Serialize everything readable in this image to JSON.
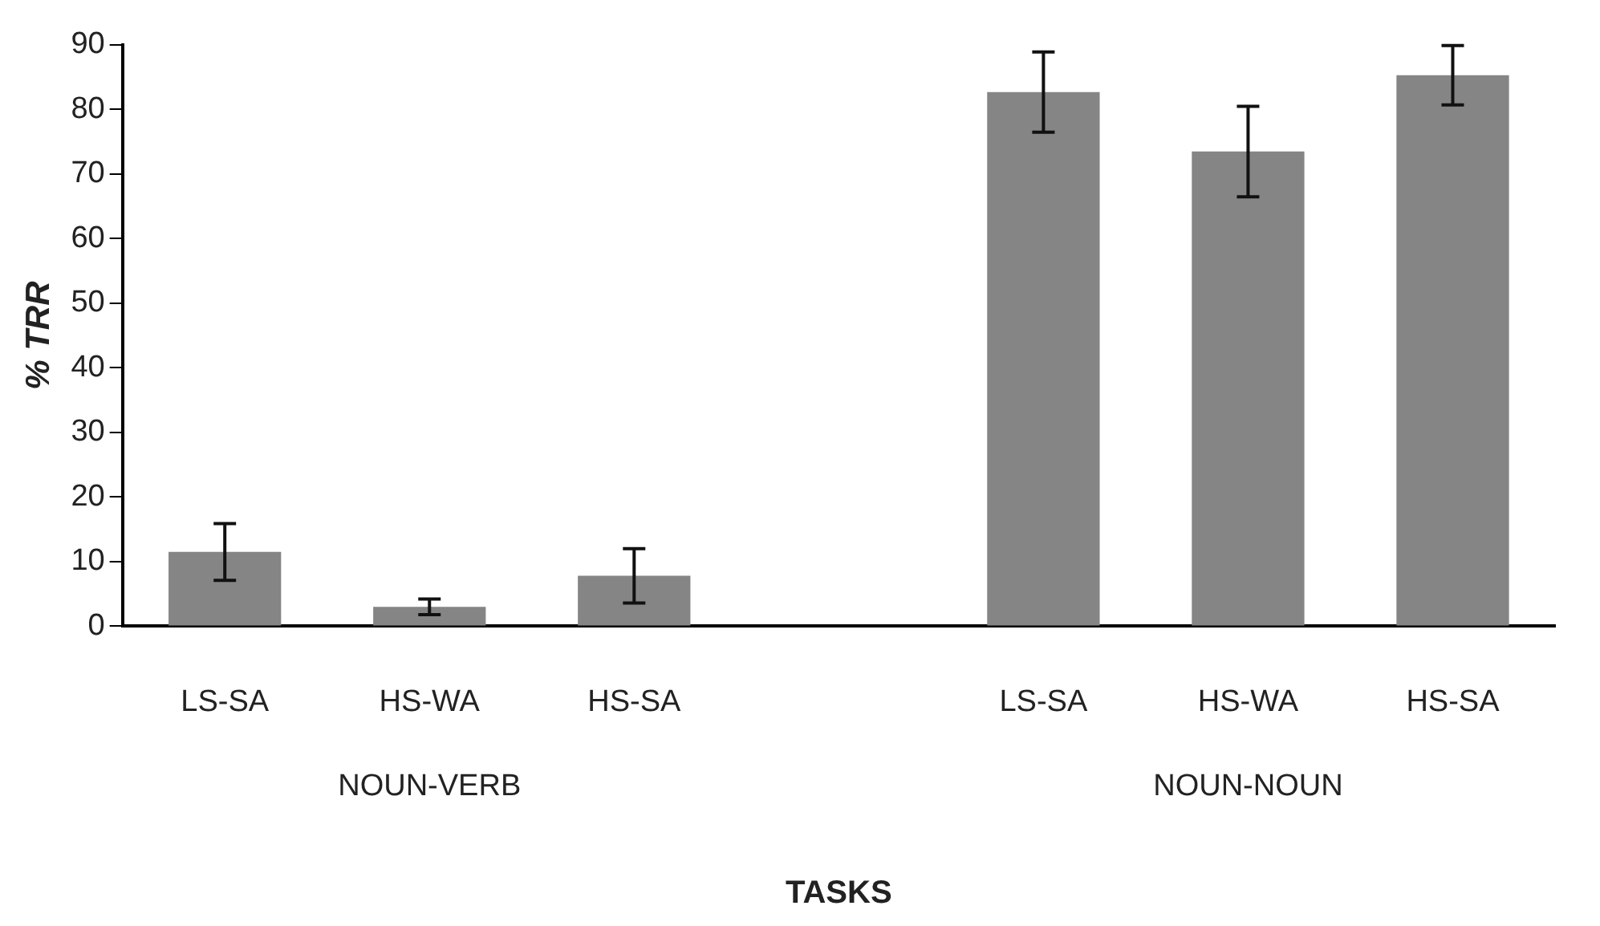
{
  "chart_data": {
    "type": "bar",
    "categories": [
      "LS-SA",
      "HS-WA",
      "HS-SA",
      null,
      "LS-SA",
      "HS-WA",
      "HS-SA"
    ],
    "values": [
      11.5,
      3,
      7.8,
      null,
      82.7,
      73.5,
      85.3
    ],
    "errors": [
      4.4,
      1.2,
      4.2,
      null,
      6.2,
      7,
      4.6
    ],
    "color": "#858585",
    "xlabel": "TASKS",
    "ylabel": "% TRR",
    "annotations": [
      "NOUN-VERB",
      "NOUN-NOUN"
    ],
    "ylim": [
      0,
      90
    ],
    "yticks": [
      0,
      10,
      20,
      30,
      40,
      50,
      60,
      70,
      80,
      90
    ],
    "grid": false,
    "legend": false
  }
}
